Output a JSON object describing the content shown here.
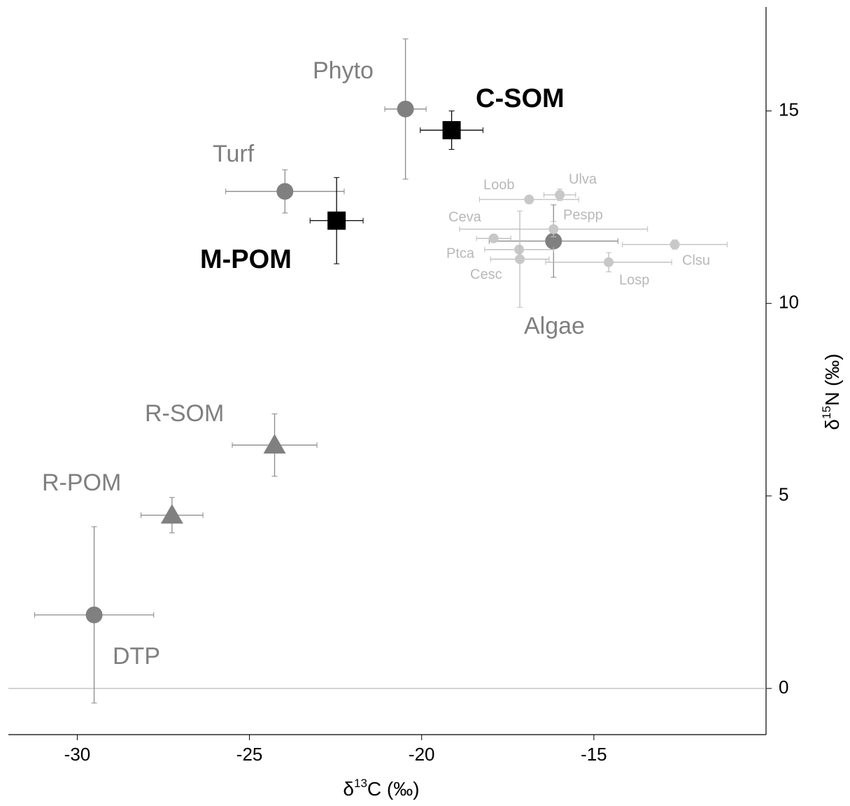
{
  "chart_data": {
    "type": "scatter",
    "xlabel": [
      "δ",
      "13",
      "C (‰)"
    ],
    "ylabel": [
      "δ",
      "15",
      "N (‰)"
    ],
    "xlim": [
      -32,
      -10
    ],
    "ylim": [
      -1.2,
      17.7
    ],
    "xticks": [
      -30,
      -25,
      -20,
      -15
    ],
    "yticks": [
      0,
      5,
      10,
      15
    ],
    "hline": 0,
    "series": [
      {
        "name": "Phyto",
        "color": "#808080",
        "marker": "circle",
        "x": [
          -20.47
        ],
        "values": [
          15.05
        ],
        "xerr": [
          0.6
        ],
        "yerr": [
          1.82
        ]
      },
      {
        "name": "C-SOM",
        "color": "#000000",
        "marker": "square",
        "x": [
          -19.13
        ],
        "values": [
          14.5
        ],
        "xerr": [
          0.91
        ],
        "yerr": [
          0.5
        ]
      },
      {
        "name": "Turf",
        "color": "#808080",
        "marker": "circle",
        "x": [
          -23.97
        ],
        "values": [
          12.91
        ],
        "xerr": [
          1.72
        ],
        "yerr": [
          0.56
        ]
      },
      {
        "name": "M-POM",
        "color": "#000000",
        "marker": "square",
        "x": [
          -22.47
        ],
        "values": [
          12.15
        ],
        "xerr": [
          0.77
        ],
        "yerr": [
          1.12
        ]
      },
      {
        "name": "R-SOM",
        "color": "#808080",
        "marker": "triangle",
        "x": [
          -24.27
        ],
        "values": [
          6.32
        ],
        "xerr": [
          1.23
        ],
        "yerr": [
          0.81
        ]
      },
      {
        "name": "R-POM",
        "color": "#808080",
        "marker": "triangle",
        "x": [
          -27.25
        ],
        "values": [
          4.5
        ],
        "xerr": [
          0.9
        ],
        "yerr": [
          0.46
        ]
      },
      {
        "name": "DTP",
        "color": "#808080",
        "marker": "circle",
        "x": [
          -29.51
        ],
        "values": [
          1.91
        ],
        "xerr": [
          1.73
        ],
        "yerr": [
          2.29
        ]
      },
      {
        "name": "Algae",
        "color": "#808080",
        "marker": "circle",
        "x": [
          -16.17
        ],
        "values": [
          11.62
        ],
        "xerr": [
          1.87
        ],
        "yerr": [
          0.94
        ]
      },
      {
        "name": "Loob",
        "color": "#c8c8c8",
        "marker": "circle",
        "x": [
          -16.88
        ],
        "values": [
          12.7
        ],
        "xerr": [
          1.44
        ],
        "yerr": [
          0.1
        ]
      },
      {
        "name": "Ulva",
        "color": "#c8c8c8",
        "marker": "circle",
        "x": [
          -15.99
        ],
        "values": [
          12.82
        ],
        "xerr": [
          0.46
        ],
        "yerr": [
          0.15
        ]
      },
      {
        "name": "Pespp",
        "color": "#c8c8c8",
        "marker": "circle",
        "x": [
          -16.17
        ],
        "values": [
          11.93
        ],
        "xerr": [
          2.73
        ],
        "yerr": [
          0.2
        ]
      },
      {
        "name": "Ceva",
        "color": "#c8c8c8",
        "marker": "circle",
        "x": [
          -17.91
        ],
        "values": [
          11.69
        ],
        "xerr": [
          0.5
        ],
        "yerr": [
          0.1
        ]
      },
      {
        "name": "Ptca",
        "color": "#c8c8c8",
        "marker": "circle",
        "x": [
          -17.17
        ],
        "values": [
          11.4
        ],
        "xerr": [
          1.0
        ],
        "yerr": [
          0.1
        ]
      },
      {
        "name": "Cesc",
        "color": "#c8c8c8",
        "marker": "circle",
        "x": [
          -17.15
        ],
        "values": [
          11.15
        ],
        "xerr": [
          0.85
        ],
        "yerr": [
          1.25
        ]
      },
      {
        "name": "Losp",
        "color": "#c8c8c8",
        "marker": "circle",
        "x": [
          -14.57
        ],
        "values": [
          11.07
        ],
        "xerr": [
          1.83
        ],
        "yerr": [
          0.25
        ]
      },
      {
        "name": "Clsu",
        "color": "#c8c8c8",
        "marker": "circle",
        "x": [
          -12.65
        ],
        "values": [
          11.53
        ],
        "xerr": [
          1.52
        ],
        "yerr": [
          0.12
        ]
      }
    ]
  }
}
